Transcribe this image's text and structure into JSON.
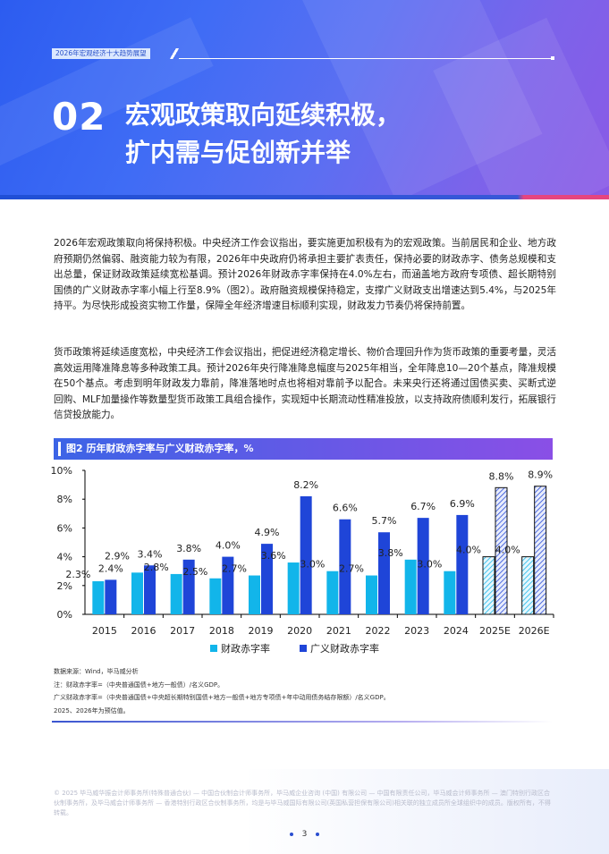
{
  "header": {
    "tag": "2026年宏观经济十大趋势展望",
    "section_number": "02",
    "title_line1": "宏观政策取向延续积极，",
    "title_line2": "扩内需与促创新并举"
  },
  "paragraphs": [
    "2026年宏观政策取向将保持积极。中央经济工作会议指出，要实施更加积极有为的宏观政策。当前居民和企业、地方政府预期仍然偏弱、融资能力较为有限，2026年中央政府仍将承担主要扩表责任，保持必要的财政赤字、债务总规模和支出总量，保证财政政策延续宽松基调。预计2026年财政赤字率保持在4.0%左右，而涵盖地方政府专项债、超长期特别国债的广义财政赤字率小幅上行至8.9%（图2）。政府融资规模保持稳定，支撑广义财政支出增速达到5.4%，与2025年持平。为尽快形成投资实物工作量，保障全年经济增速目标顺利实现，财政发力节奏仍将保持前置。",
    "货币政策将延续适度宽松，中央经济工作会议指出，把促进经济稳定增长、物价合理回升作为货币政策的重要考量，灵活高效运用降准降息等多种政策工具。预计2026年央行降准降息幅度与2025年相当，全年降息10—20个基点，降准规模在50个基点。考虑到明年财政发力靠前，降准落地时点也将相对靠前予以配合。未来央行还将通过国债买卖、买断式逆回购、MLF加量操作等数量型货币政策工具组合操作，实现短中长期流动性精准投放，以支持政府债顺利发行，拓展银行信贷投放能力。"
  ],
  "chart_data": {
    "type": "bar",
    "title": "图2 历年财政赤字率与广义财政赤字率，%",
    "categories": [
      "2015",
      "2016",
      "2017",
      "2018",
      "2019",
      "2020",
      "2021",
      "2022",
      "2023",
      "2024",
      "2025E",
      "2026E"
    ],
    "series": [
      {
        "name": "财政赤字率",
        "values": [
          2.3,
          2.9,
          2.8,
          2.5,
          2.7,
          3.6,
          3.0,
          2.7,
          3.8,
          3.0,
          4.0,
          4.0
        ],
        "labels": [
          "2.3%",
          "2.9%",
          "2.8%",
          "2.5%",
          "2.7%",
          "3.6%",
          "3.0%",
          "2.7%",
          "3.8%",
          "3.0%",
          "4.0%",
          "4.0%"
        ],
        "color": "#12b5ea"
      },
      {
        "name": "广义财政赤字率",
        "values": [
          2.4,
          3.4,
          3.8,
          4.0,
          4.9,
          8.2,
          6.6,
          5.7,
          6.7,
          6.9,
          8.8,
          8.9
        ],
        "labels": [
          "2.4%",
          "3.4%",
          "3.8%",
          "4.0%",
          "4.9%",
          "8.2%",
          "6.6%",
          "5.7%",
          "6.7%",
          "6.9%",
          "8.8%",
          "8.9%"
        ],
        "color": "#1f45d8"
      }
    ],
    "estimated_categories": [
      "2025E",
      "2026E"
    ],
    "yticks": [
      "0%",
      "2%",
      "4%",
      "6%",
      "8%",
      "10%"
    ],
    "ylim": [
      0,
      10
    ],
    "legend": "bottom",
    "grid": false
  },
  "notes": [
    "数据来源：Wind，毕马威分析",
    "注：财政赤字率=（中央普通国债+地方一般债）/名义GDP。",
    "广义财政赤字率=（中央普通国债+中央超长期特别国债+地方一般债+地方专项债+年中动用债务结存限额）/名义GDP。",
    "2025、2026年为预估值。"
  ],
  "footer": {
    "copyright": "© 2025 毕马威华振会计师事务所(特殊普通合伙) — 中国合伙制会计师事务所，毕马威企业咨询 (中国) 有限公司 — 中国有限责任公司，毕马威会计师事务所 — 澳门特别行政区合伙制事务所，及毕马威会计师事务所 — 香港特别行政区合伙制事务所，均是与毕马威国际有限公司(英国私营担保有限公司)相关联的独立成员所全球组织中的成员。版权所有，不得转载。",
    "page": "3"
  }
}
